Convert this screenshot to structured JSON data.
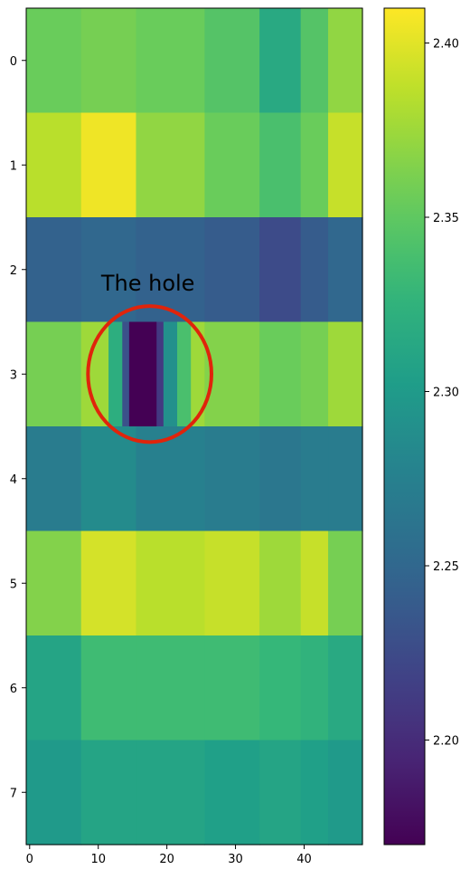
{
  "chart_data": {
    "type": "heatmap",
    "title": "",
    "xlabel": "",
    "ylabel": "",
    "xlim": [
      -0.5,
      48.5
    ],
    "ylim": [
      7.5,
      -0.5
    ],
    "x_ticks": [
      0,
      10,
      20,
      30,
      40
    ],
    "y_ticks": [
      0,
      1,
      2,
      3,
      4,
      5,
      6,
      7
    ],
    "colormap": "viridis",
    "colorbar": {
      "range": [
        2.17,
        2.41
      ],
      "ticks": [
        2.2,
        2.25,
        2.3,
        2.35,
        2.4
      ],
      "tick_labels": [
        "2.20",
        "2.25",
        "2.30",
        "2.35",
        "2.40"
      ]
    },
    "rows": [
      {
        "row": 0,
        "segments": [
          {
            "from": 0,
            "to": 8,
            "value": 2.355
          },
          {
            "from": 8,
            "to": 16,
            "value": 2.36
          },
          {
            "from": 16,
            "to": 26,
            "value": 2.355
          },
          {
            "from": 26,
            "to": 34,
            "value": 2.345
          },
          {
            "from": 34,
            "to": 40,
            "value": 2.315
          },
          {
            "from": 40,
            "to": 44,
            "value": 2.345
          },
          {
            "from": 44,
            "to": 49,
            "value": 2.37
          }
        ]
      },
      {
        "row": 1,
        "segments": [
          {
            "from": 0,
            "to": 8,
            "value": 2.385
          },
          {
            "from": 8,
            "to": 16,
            "value": 2.405
          },
          {
            "from": 16,
            "to": 26,
            "value": 2.37
          },
          {
            "from": 26,
            "to": 34,
            "value": 2.355
          },
          {
            "from": 34,
            "to": 40,
            "value": 2.34
          },
          {
            "from": 40,
            "to": 44,
            "value": 2.355
          },
          {
            "from": 44,
            "to": 49,
            "value": 2.39
          }
        ]
      },
      {
        "row": 2,
        "segments": [
          {
            "from": 0,
            "to": 8,
            "value": 2.245
          },
          {
            "from": 8,
            "to": 16,
            "value": 2.25
          },
          {
            "from": 16,
            "to": 26,
            "value": 2.245
          },
          {
            "from": 26,
            "to": 34,
            "value": 2.24
          },
          {
            "from": 34,
            "to": 40,
            "value": 2.225
          },
          {
            "from": 40,
            "to": 44,
            "value": 2.24
          },
          {
            "from": 44,
            "to": 49,
            "value": 2.25
          }
        ]
      },
      {
        "row": 3,
        "segments": [
          {
            "from": 0,
            "to": 8,
            "value": 2.36
          },
          {
            "from": 8,
            "to": 12,
            "value": 2.375
          },
          {
            "from": 12,
            "to": 14,
            "value": 2.32
          },
          {
            "from": 14,
            "to": 15,
            "value": 2.23
          },
          {
            "from": 15,
            "to": 19,
            "value": 2.17
          },
          {
            "from": 19,
            "to": 20,
            "value": 2.21
          },
          {
            "from": 20,
            "to": 22,
            "value": 2.29
          },
          {
            "from": 22,
            "to": 24,
            "value": 2.34
          },
          {
            "from": 24,
            "to": 26,
            "value": 2.375
          },
          {
            "from": 26,
            "to": 34,
            "value": 2.365
          },
          {
            "from": 34,
            "to": 40,
            "value": 2.355
          },
          {
            "from": 40,
            "to": 44,
            "value": 2.36
          },
          {
            "from": 44,
            "to": 49,
            "value": 2.375
          }
        ]
      },
      {
        "row": 4,
        "segments": [
          {
            "from": 0,
            "to": 8,
            "value": 2.27
          },
          {
            "from": 8,
            "to": 16,
            "value": 2.285
          },
          {
            "from": 16,
            "to": 26,
            "value": 2.275
          },
          {
            "from": 26,
            "to": 34,
            "value": 2.27
          },
          {
            "from": 34,
            "to": 40,
            "value": 2.265
          },
          {
            "from": 40,
            "to": 44,
            "value": 2.27
          },
          {
            "from": 44,
            "to": 49,
            "value": 2.27
          }
        ]
      },
      {
        "row": 5,
        "segments": [
          {
            "from": 0,
            "to": 8,
            "value": 2.365
          },
          {
            "from": 8,
            "to": 16,
            "value": 2.395
          },
          {
            "from": 16,
            "to": 26,
            "value": 2.385
          },
          {
            "from": 26,
            "to": 34,
            "value": 2.39
          },
          {
            "from": 34,
            "to": 40,
            "value": 2.375
          },
          {
            "from": 40,
            "to": 44,
            "value": 2.39
          },
          {
            "from": 44,
            "to": 49,
            "value": 2.36
          }
        ]
      },
      {
        "row": 6,
        "segments": [
          {
            "from": 0,
            "to": 8,
            "value": 2.31
          },
          {
            "from": 8,
            "to": 16,
            "value": 2.335
          },
          {
            "from": 16,
            "to": 26,
            "value": 2.335
          },
          {
            "from": 26,
            "to": 34,
            "value": 2.335
          },
          {
            "from": 34,
            "to": 40,
            "value": 2.33
          },
          {
            "from": 40,
            "to": 44,
            "value": 2.325
          },
          {
            "from": 44,
            "to": 49,
            "value": 2.315
          }
        ]
      },
      {
        "row": 7,
        "segments": [
          {
            "from": 0,
            "to": 8,
            "value": 2.3
          },
          {
            "from": 8,
            "to": 16,
            "value": 2.31
          },
          {
            "from": 16,
            "to": 26,
            "value": 2.31
          },
          {
            "from": 26,
            "to": 34,
            "value": 2.305
          },
          {
            "from": 34,
            "to": 40,
            "value": 2.31
          },
          {
            "from": 40,
            "to": 44,
            "value": 2.305
          },
          {
            "from": 44,
            "to": 49,
            "value": 2.3
          }
        ]
      }
    ],
    "annotation": {
      "text": "The hole",
      "color": "#e0240b",
      "circle_center": [
        17.5,
        3.0
      ],
      "circle_radius": [
        9.0,
        0.65
      ]
    }
  }
}
